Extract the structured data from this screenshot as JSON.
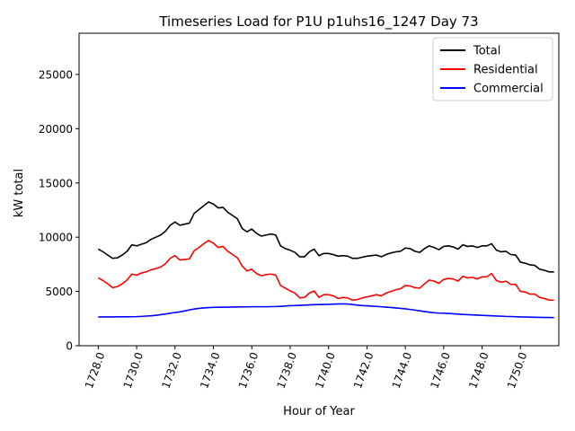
{
  "chart_data": {
    "type": "line",
    "title": "Timeseries Load for P1U p1uhs16_1247  Day 73",
    "xlabel": "Hour of Year",
    "ylabel": "kW total",
    "xlim": [
      1727.0,
      1752.0
    ],
    "ylim": [
      0,
      28800
    ],
    "x_ticks": [
      1728,
      1730,
      1732,
      1734,
      1736,
      1738,
      1740,
      1742,
      1744,
      1746,
      1748,
      1750
    ],
    "x_tick_labels": [
      "1728.0",
      "1730.0",
      "1732.0",
      "1734.0",
      "1736.0",
      "1738.0",
      "1740.0",
      "1742.0",
      "1744.0",
      "1746.0",
      "1748.0",
      "1750.0"
    ],
    "y_ticks": [
      0,
      5000,
      10000,
      15000,
      20000,
      25000
    ],
    "y_tick_labels": [
      "0",
      "5000",
      "10000",
      "15000",
      "20000",
      "25000"
    ],
    "legend_position": "top-right",
    "x_start": 1728.0,
    "x_step": 0.25,
    "series": [
      {
        "name": "Total",
        "color": "#000000",
        "values": [
          8900,
          8650,
          8350,
          8050,
          8100,
          8350,
          8700,
          9300,
          9200,
          9350,
          9500,
          9800,
          10000,
          10200,
          10550,
          11100,
          11400,
          11100,
          11200,
          11300,
          12200,
          12550,
          12900,
          13250,
          13050,
          12700,
          12750,
          12300,
          12000,
          11700,
          10800,
          10500,
          10750,
          10350,
          10100,
          10200,
          10300,
          10200,
          9200,
          8950,
          8800,
          8600,
          8200,
          8200,
          8650,
          8900,
          8300,
          8500,
          8500,
          8400,
          8250,
          8300,
          8250,
          8050,
          8050,
          8150,
          8250,
          8300,
          8350,
          8200,
          8400,
          8550,
          8650,
          8700,
          9000,
          8950,
          8700,
          8600,
          8950,
          9200,
          9050,
          8850,
          9150,
          9200,
          9100,
          8900,
          9300,
          9150,
          9200,
          9050,
          9200,
          9200,
          9400,
          8800,
          8650,
          8700,
          8400,
          8350,
          7700,
          7600,
          7450,
          7400,
          7050,
          6950,
          6800,
          6800
        ]
      },
      {
        "name": "Residential",
        "color": "#ff0000",
        "values": [
          6250,
          6000,
          5700,
          5350,
          5450,
          5700,
          6050,
          6600,
          6500,
          6700,
          6800,
          7000,
          7100,
          7250,
          7550,
          8050,
          8300,
          7900,
          7950,
          8000,
          8750,
          9050,
          9400,
          9700,
          9450,
          9050,
          9150,
          8700,
          8400,
          8100,
          7350,
          6900,
          7050,
          6650,
          6450,
          6550,
          6600,
          6500,
          5550,
          5300,
          5050,
          4850,
          4400,
          4450,
          4850,
          5050,
          4450,
          4700,
          4700,
          4600,
          4350,
          4450,
          4400,
          4200,
          4250,
          4400,
          4500,
          4600,
          4700,
          4600,
          4850,
          5000,
          5150,
          5250,
          5550,
          5500,
          5350,
          5300,
          5700,
          6050,
          5950,
          5750,
          6100,
          6200,
          6150,
          5950,
          6400,
          6250,
          6300,
          6150,
          6350,
          6350,
          6650,
          6000,
          5850,
          5950,
          5650,
          5650,
          5000,
          4950,
          4750,
          4750,
          4450,
          4350,
          4200,
          4200
        ]
      },
      {
        "name": "Commercial",
        "color": "#0000ff",
        "values": [
          2650,
          2650,
          2650,
          2650,
          2660,
          2660,
          2660,
          2670,
          2680,
          2700,
          2730,
          2760,
          2800,
          2860,
          2920,
          2990,
          3060,
          3120,
          3200,
          3300,
          3380,
          3440,
          3480,
          3510,
          3530,
          3540,
          3550,
          3550,
          3560,
          3570,
          3580,
          3580,
          3590,
          3590,
          3590,
          3590,
          3600,
          3610,
          3630,
          3660,
          3690,
          3700,
          3720,
          3740,
          3760,
          3780,
          3790,
          3800,
          3810,
          3830,
          3840,
          3850,
          3840,
          3790,
          3740,
          3700,
          3680,
          3650,
          3620,
          3590,
          3550,
          3520,
          3480,
          3440,
          3400,
          3340,
          3280,
          3210,
          3150,
          3090,
          3040,
          3010,
          2990,
          2970,
          2940,
          2910,
          2880,
          2860,
          2840,
          2820,
          2800,
          2780,
          2760,
          2740,
          2720,
          2700,
          2690,
          2670,
          2650,
          2640,
          2630,
          2620,
          2610,
          2600,
          2600,
          2590
        ]
      }
    ]
  }
}
